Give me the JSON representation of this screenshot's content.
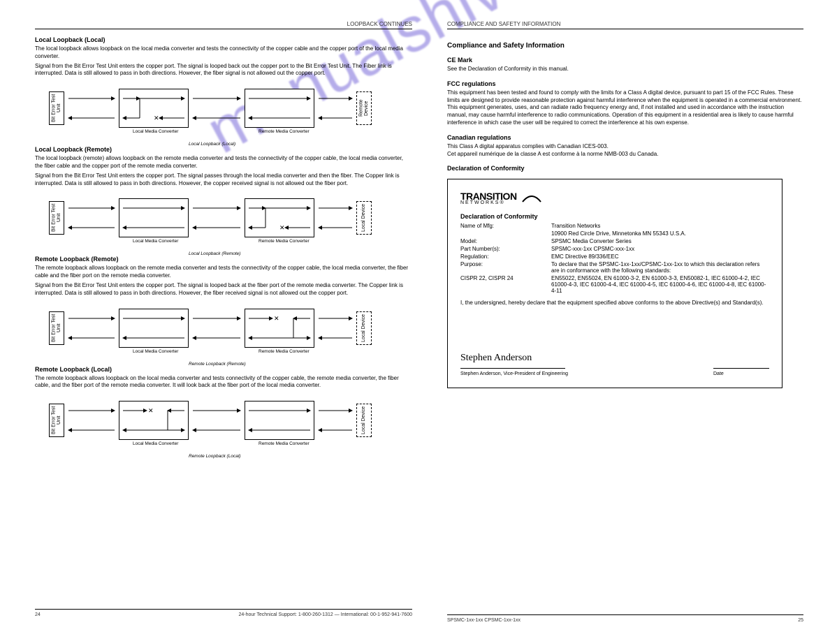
{
  "leftPage": {
    "headerRight": "LOOPBACK CONTINUES",
    "sec1_title": "Local Loopback (Local)",
    "sec1_p1": "The local loopback allows loopback on the local media converter and tests the connectivity of the copper cable and the copper port of the local media converter.",
    "sec1_p2": "Signal from the Bit Error Test Unit enters the copper port. The signal is looped back out the copper port to the Bit Error Test Unit. The Fiber link is interrupted. Data is still allowed to pass in both directions. However, the fiber signal is not allowed out the copper port.",
    "diag1": {
      "leftLabel": "Bit Error\nTest Unit",
      "box1": "Local Media\nConverter",
      "box2": "Remote Media\nConverter",
      "rightLabel": "Remote\nDevice"
    },
    "caption1": "Local Loopback (Local)",
    "sec2_title": "Local Loopback (Remote)",
    "sec2_p1": "The local loopback (remote) allows loopback on the remote media converter and tests the connectivity of the copper cable, the local media converter, the fiber cable and the copper port of the remote media converter.",
    "sec2_p2": "Signal from the Bit Error Test Unit enters the copper port. The signal passes through the local media converter and then the fiber. The Copper link is interrupted. Data is still allowed to pass in both directions. However, the copper received signal is not allowed out the fiber port.",
    "diag2": {
      "leftLabel": "Bit Error\nTest Unit",
      "box1": "Local Media\nConverter",
      "box2": "Remote Media\nConverter",
      "rightLabel": "Local\nDevice"
    },
    "caption2": "Local Loopback (Remote)",
    "sec3_title": "Remote Loopback (Remote)",
    "sec3_p1": "The remote loopback allows loopback on the remote media converter and tests the connectivity of the copper cable, the local media converter, the fiber cable and the fiber port on the remote media converter.",
    "sec3_p2": "Signal from the Bit Error Test Unit enters the copper port. The signal is looped back at the fiber port of the remote media converter. The Copper link is interrupted. Data is still allowed to pass in both directions. However, the fiber received signal is not allowed out the copper port.",
    "diag3": {
      "leftLabel": "Bit Error\nTest Unit",
      "box1": "Local Media\nConverter",
      "box2": "Remote Media\nConverter",
      "rightLabel": "Local\nDevice"
    },
    "caption3": "Remote Loopback (Remote)",
    "sec4_title": "Remote Loopback (Local)",
    "sec4_p1": "The remote loopback allows loopback on the local media converter and tests connectivity of the copper cable, the remote media converter, the fiber cable, and the fiber port of the remote media converter. It will look back at the fiber port of the local media converter.",
    "diag4": {
      "leftLabel": "Bit Error\nTest Unit",
      "box1": "Local Media\nConverter",
      "box2": "Remote Media\nConverter",
      "rightLabel": "Local\nDevice"
    },
    "caption4": "Remote Loopback (Local)",
    "footerLeft": "24",
    "footerRight": "24-hour Technical Support: 1-800-260-1312 — International: 00-1-952-941-7600"
  },
  "rightPage": {
    "headerLeft": "COMPLIANCE AND SAFETY INFORMATION",
    "title": "Compliance and Safety Information",
    "ceTitle": "CE Mark",
    "ceBody": "See the Declaration of Conformity in this manual.",
    "fccTitle": "FCC regulations",
    "fccBody": "This equipment has been tested and found to comply with the limits for a Class A digital device, pursuant to part 15 of the FCC Rules. These limits are designed to provide reasonable protection against harmful interference when the equipment is operated in a commercial environment. This equipment generates, uses, and can radiate radio frequency energy and, if not installed and used in accordance with the instruction manual, may cause harmful interference to radio communications. Operation of this equipment in a residential area is likely to cause harmful interference in which case the user will be required to correct the interference at his own expense.",
    "canTitle": "Canadian regulations",
    "canBody": "This Class A digital apparatus complies with Canadian ICES-003.\nCet appareil numérique de la classe A est conforme à la norme NMB-003 du Canada.",
    "decTitle": "Declaration of Conformity",
    "decl": {
      "logoTop": "TRANSITION",
      "logoBottom": "NETWORKS®",
      "heading": "Declaration of Conformity",
      "rows": [
        {
          "k": "Name of Mfg:",
          "v": "Transition Networks"
        },
        {
          "k": "",
          "v": "10900 Red Circle Drive, Minnetonka MN 55343 U.S.A."
        },
        {
          "k": "Model:",
          "v": "SPSMC Media Converter Series"
        },
        {
          "k": "Part Number(s):",
          "v": "SPSMC-xxx-1xx CPSMC-xxx-1xx"
        },
        {
          "k": "Regulation:",
          "v": "EMC Directive 89/336/EEC"
        },
        {
          "k": "Purpose:",
          "v": "To declare that the SPSMC-1xx-1xx/CPSMC-1xx-1xx to which this declaration refers are in conformance with the following standards:"
        },
        {
          "k": "CISPR 22, CISPR 24",
          "v": "EN55022, EN55024, EN 61000-3-2, EN 61000-3-3, EN50082-1, IEC 61000-4-2, IEC 61000-4-3, IEC 61000-4-4, IEC 61000-4-5, IEC 61000-4-6, IEC 61000-4-8, IEC 61000-4-11"
        }
      ],
      "tested": "I, the undersigned, hereby declare that the equipment specified above conforms to the above Directive(s) and Standard(s).",
      "sigName": "Stephen Anderson",
      "sigTitle": "Stephen Anderson, Vice-President of Engineering",
      "sigDate": "Date"
    },
    "footerLeft": "SPSMC-1xx-1xx    CPSMC-1xx-1xx",
    "footerRight": "25"
  },
  "watermark": "manualshive.com",
  "colors": {
    "text": "#000000",
    "watermark": "#7a6bd9",
    "bg": "#ffffff"
  }
}
